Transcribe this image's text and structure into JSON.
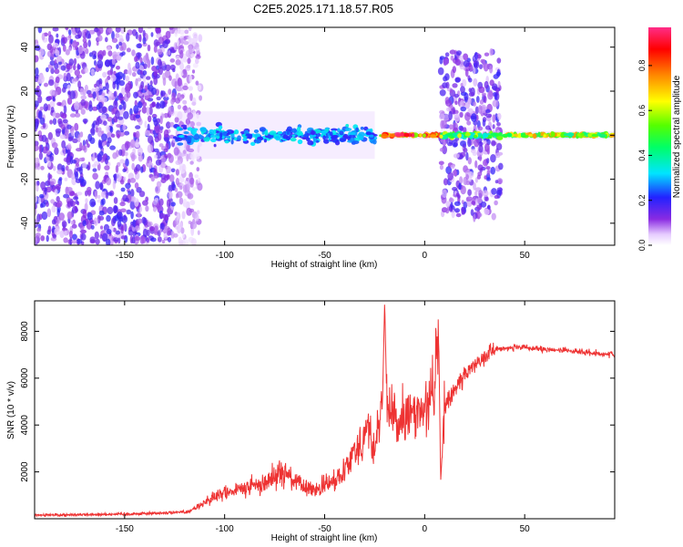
{
  "figure": {
    "title": "C2E5.2025.171.18.57.R05"
  },
  "chart_data": [
    {
      "type": "heatmap",
      "xlabel": "Height of straight line (km)",
      "ylabel": "Frequency (Hz)",
      "xlim": [
        -195,
        95
      ],
      "ylim": [
        -50,
        49
      ],
      "x_ticks": [
        -150,
        -100,
        -50,
        0,
        50
      ],
      "y_ticks": [
        -40,
        -20,
        0,
        20,
        40
      ],
      "colorbar": {
        "label": "Normalized spectral amplitude",
        "range": [
          0,
          0.97
        ],
        "ticks": [
          0.0,
          0.2,
          0.4,
          0.6,
          0.8
        ],
        "colormap": "rainbow (white-violet-blue-cyan-green-yellow-orange-red-pink)"
      },
      "regions": [
        {
          "x": [
            -195,
            -125
          ],
          "freq_spread": 49,
          "amplitude": 0.15,
          "note": "scattered noise"
        },
        {
          "x": [
            -125,
            -112
          ],
          "freq_spread": 49,
          "amplitude": 0.08,
          "note": "sparse noise"
        },
        {
          "x": [
            -125,
            -25
          ],
          "freq_center": 0,
          "freq_spread": 6,
          "amplitude": 0.3
        },
        {
          "x": [
            -22,
            8
          ],
          "freq_center": 0,
          "freq_spread": 1,
          "amplitude": 0.9
        },
        {
          "x": [
            8,
            38
          ],
          "freq_spread": 38,
          "amplitude": 0.15,
          "note": "scattered noise"
        },
        {
          "x": [
            8,
            38
          ],
          "freq_center": 0,
          "freq_spread": 2,
          "amplitude": 0.55
        },
        {
          "x": [
            40,
            95
          ],
          "freq_center": 0,
          "freq_spread": 1,
          "amplitude": 0.65
        }
      ]
    },
    {
      "type": "line",
      "xlabel": "Height of straight line (km)",
      "ylabel": "SNR (10 * v/v)",
      "xlim": [
        -195,
        95
      ],
      "ylim": [
        0,
        9300
      ],
      "x_ticks": [
        -150,
        -100,
        -50,
        0,
        50
      ],
      "y_ticks": [
        2000,
        4000,
        6000,
        8000
      ],
      "color": "#ee3333",
      "series": [
        {
          "x": [
            -195,
            -170,
            -150,
            -130,
            -118,
            -110,
            -100,
            -90,
            -80,
            -72,
            -62,
            -55,
            -45,
            -38,
            -32,
            -28,
            -25,
            -21,
            -20,
            -19,
            -15,
            -10,
            -5,
            0,
            5,
            7,
            8,
            10,
            15,
            20,
            25,
            30,
            35,
            40,
            50,
            60,
            70,
            80,
            95
          ],
          "y": [
            150,
            180,
            200,
            250,
            300,
            700,
            1100,
            1300,
            1500,
            2100,
            1400,
            1200,
            1600,
            2500,
            3300,
            3900,
            2800,
            5200,
            9300,
            5200,
            4000,
            4300,
            4500,
            4800,
            5600,
            8000,
            1600,
            4800,
            5500,
            6100,
            6600,
            7000,
            7200,
            7300,
            7300,
            7200,
            7200,
            7100,
            7000
          ]
        }
      ]
    }
  ]
}
